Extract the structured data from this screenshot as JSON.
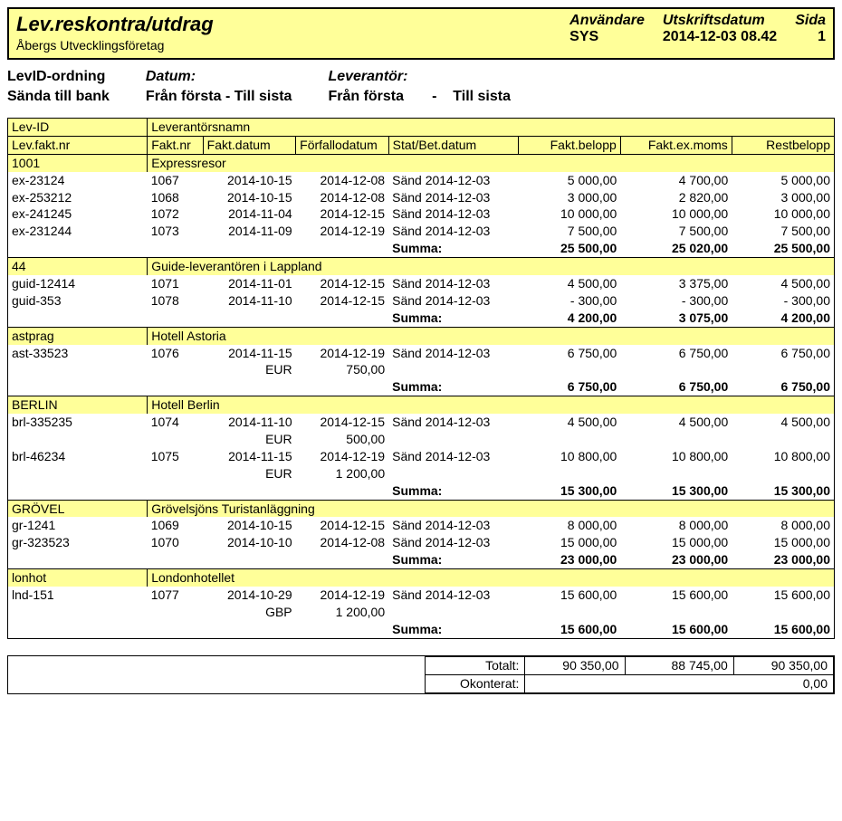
{
  "colors": {
    "highlight": "#ffff99",
    "border": "#000000",
    "text": "#000000",
    "bg": "#ffffff"
  },
  "fonts": {
    "family": "Arial",
    "base_size_pt": 14,
    "title_size_pt": 22
  },
  "header": {
    "title": "Lev.reskontra/utdrag",
    "subtitle": "Åbergs Utvecklingsföretag",
    "user_label": "Användare",
    "user_value": "SYS",
    "date_label": "Utskriftsdatum",
    "date_value": "2014-12-03 08.42",
    "page_label": "Sida",
    "page_value": "1"
  },
  "filters": {
    "col1_line1": "LevID-ordning",
    "col1_line2": "Sända till bank",
    "col2_label": "Datum:",
    "col2_value": "Från första  -  Till sista",
    "col3_label": "Leverantör:",
    "col3_from": "Från första",
    "col3_dash": "-",
    "col3_to": "Till sista"
  },
  "columns": {
    "levid": "Lev-ID",
    "levname": "Leverantörsnamn",
    "levfaktnr": "Lev.fakt.nr",
    "faktnr": "Fakt.nr",
    "faktdatum": "Fakt.datum",
    "forfallo": "Förfallodatum",
    "stat": "Stat/Bet.datum",
    "faktbelopp": "Fakt.belopp",
    "exmoms": "Fakt.ex.moms",
    "rest": "Restbelopp"
  },
  "summa_label": "Summa:",
  "groups": [
    {
      "id": "1001",
      "name": "Expressresor",
      "rows": [
        {
          "lf": "ex-23124",
          "fn": "1067",
          "fd": "2014-10-15",
          "ff": "2014-12-08",
          "st": "Sänd 2014-12-03",
          "b": "5 000,00",
          "ex": "4 700,00",
          "r": "5 000,00"
        },
        {
          "lf": "ex-253212",
          "fn": "1068",
          "fd": "2014-10-15",
          "ff": "2014-12-08",
          "st": "Sänd 2014-12-03",
          "b": "3 000,00",
          "ex": "2 820,00",
          "r": "3 000,00"
        },
        {
          "lf": "ex-241245",
          "fn": "1072",
          "fd": "2014-11-04",
          "ff": "2014-12-15",
          "st": "Sänd 2014-12-03",
          "b": "10 000,00",
          "ex": "10 000,00",
          "r": "10 000,00"
        },
        {
          "lf": "ex-231244",
          "fn": "1073",
          "fd": "2014-11-09",
          "ff": "2014-12-19",
          "st": "Sänd 2014-12-03",
          "b": "7 500,00",
          "ex": "7 500,00",
          "r": "7 500,00"
        }
      ],
      "sum": {
        "b": "25 500,00",
        "ex": "25 020,00",
        "r": "25 500,00"
      }
    },
    {
      "id": "44",
      "name": "Guide-leverantören i Lappland",
      "rows": [
        {
          "lf": "guid-12414",
          "fn": "1071",
          "fd": "2014-11-01",
          "ff": "2014-12-15",
          "st": "Sänd 2014-12-03",
          "b": "4 500,00",
          "ex": "3 375,00",
          "r": "4 500,00"
        },
        {
          "lf": "guid-353",
          "fn": "1078",
          "fd": "2014-11-10",
          "ff": "2014-12-15",
          "st": "Sänd 2014-12-03",
          "b": "- 300,00",
          "ex": "- 300,00",
          "r": "- 300,00"
        }
      ],
      "sum": {
        "b": "4 200,00",
        "ex": "3 075,00",
        "r": "4 200,00"
      }
    },
    {
      "id": "astprag",
      "name": "Hotell Astoria",
      "rows": [
        {
          "lf": "ast-33523",
          "fn": "1076",
          "fd": "2014-11-15",
          "ff": "2014-12-19",
          "st": "Sänd 2014-12-03",
          "b": "6 750,00",
          "ex": "6 750,00",
          "r": "6 750,00",
          "cur": "EUR",
          "curamt": "750,00"
        }
      ],
      "sum": {
        "b": "6 750,00",
        "ex": "6 750,00",
        "r": "6 750,00"
      }
    },
    {
      "id": "BERLIN",
      "name": "Hotell Berlin",
      "rows": [
        {
          "lf": "brl-335235",
          "fn": "1074",
          "fd": "2014-11-10",
          "ff": "2014-12-15",
          "st": "Sänd 2014-12-03",
          "b": "4 500,00",
          "ex": "4 500,00",
          "r": "4 500,00",
          "cur": "EUR",
          "curamt": "500,00"
        },
        {
          "lf": "brl-46234",
          "fn": "1075",
          "fd": "2014-11-15",
          "ff": "2014-12-19",
          "st": "Sänd 2014-12-03",
          "b": "10 800,00",
          "ex": "10 800,00",
          "r": "10 800,00",
          "cur": "EUR",
          "curamt": "1 200,00"
        }
      ],
      "sum": {
        "b": "15 300,00",
        "ex": "15 300,00",
        "r": "15 300,00"
      }
    },
    {
      "id": "GRÖVEL",
      "name": "Grövelsjöns Turistanläggning",
      "rows": [
        {
          "lf": "gr-1241",
          "fn": "1069",
          "fd": "2014-10-15",
          "ff": "2014-12-15",
          "st": "Sänd 2014-12-03",
          "b": "8 000,00",
          "ex": "8 000,00",
          "r": "8 000,00"
        },
        {
          "lf": "gr-323523",
          "fn": "1070",
          "fd": "2014-10-10",
          "ff": "2014-12-08",
          "st": "Sänd 2014-12-03",
          "b": "15 000,00",
          "ex": "15 000,00",
          "r": "15 000,00"
        }
      ],
      "sum": {
        "b": "23 000,00",
        "ex": "23 000,00",
        "r": "23 000,00"
      }
    },
    {
      "id": "lonhot",
      "name": "Londonhotellet",
      "rows": [
        {
          "lf": "lnd-151",
          "fn": "1077",
          "fd": "2014-10-29",
          "ff": "2014-12-19",
          "st": "Sänd 2014-12-03",
          "b": "15 600,00",
          "ex": "15 600,00",
          "r": "15 600,00",
          "cur": "GBP",
          "curamt": "1 200,00"
        }
      ],
      "sum": {
        "b": "15 600,00",
        "ex": "15 600,00",
        "r": "15 600,00"
      }
    }
  ],
  "totals": {
    "total_label": "Totalt:",
    "total": {
      "b": "90 350,00",
      "ex": "88 745,00",
      "r": "90 350,00"
    },
    "okont_label": "Okonterat:",
    "okont": "0,00"
  }
}
